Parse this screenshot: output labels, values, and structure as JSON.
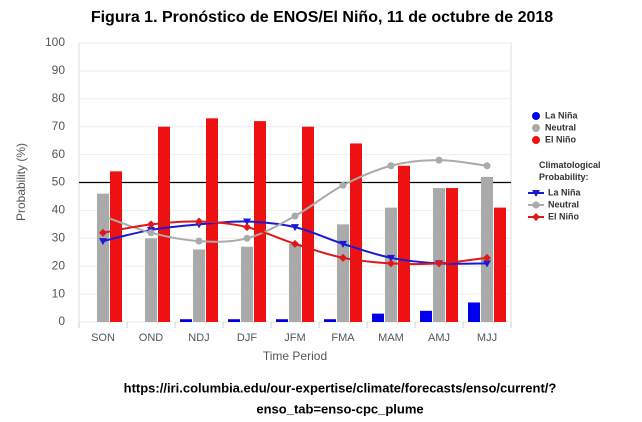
{
  "chart_data": {
    "type": "bar",
    "title": "Figura 1. Pronóstico de ENOS/El Niño, 11 de octubre de 2018",
    "x_label": "Time Period",
    "y_label": "Probability (%)",
    "categories": [
      "SON",
      "OND",
      "NDJ",
      "DJF",
      "JFM",
      "FMA",
      "MAM",
      "AMJ",
      "MJJ"
    ],
    "series": [
      {
        "name": "La Niña",
        "color": "#0000ee",
        "values": [
          0,
          0,
          1,
          1,
          1,
          1,
          3,
          4,
          7
        ]
      },
      {
        "name": "Neutral",
        "color": "#aaaaaa",
        "values": [
          46,
          30,
          26,
          27,
          28,
          35,
          41,
          48,
          52
        ]
      },
      {
        "name": "El Niño",
        "color": "#ee1111",
        "values": [
          54,
          70,
          73,
          72,
          70,
          64,
          56,
          48,
          41
        ]
      }
    ],
    "climatology_title": "Climatological Probability:",
    "climatology_series": [
      {
        "name": "La Niña",
        "color": "#1a1ad6",
        "values": [
          29,
          33,
          35,
          36,
          34,
          28,
          23,
          21,
          21
        ]
      },
      {
        "name": "Neutral",
        "color": "#aaaaaa",
        "values": [
          38,
          32,
          29,
          30,
          38,
          49,
          56,
          58,
          56
        ]
      },
      {
        "name": "El Niño",
        "color": "#e01818",
        "values": [
          32,
          35,
          36,
          34,
          28,
          23,
          21,
          21,
          23
        ]
      }
    ],
    "reference_line": 50,
    "ylim": [
      0,
      100
    ],
    "yticks": [
      0,
      10,
      20,
      30,
      40,
      50,
      60,
      70,
      80,
      90,
      100
    ],
    "grid": true,
    "source_lines": [
      "https://iri.columbia.edu/our-expertise/climate/forecasts/enso/current/?",
      "enso_tab=enso-cpc_plume"
    ]
  }
}
